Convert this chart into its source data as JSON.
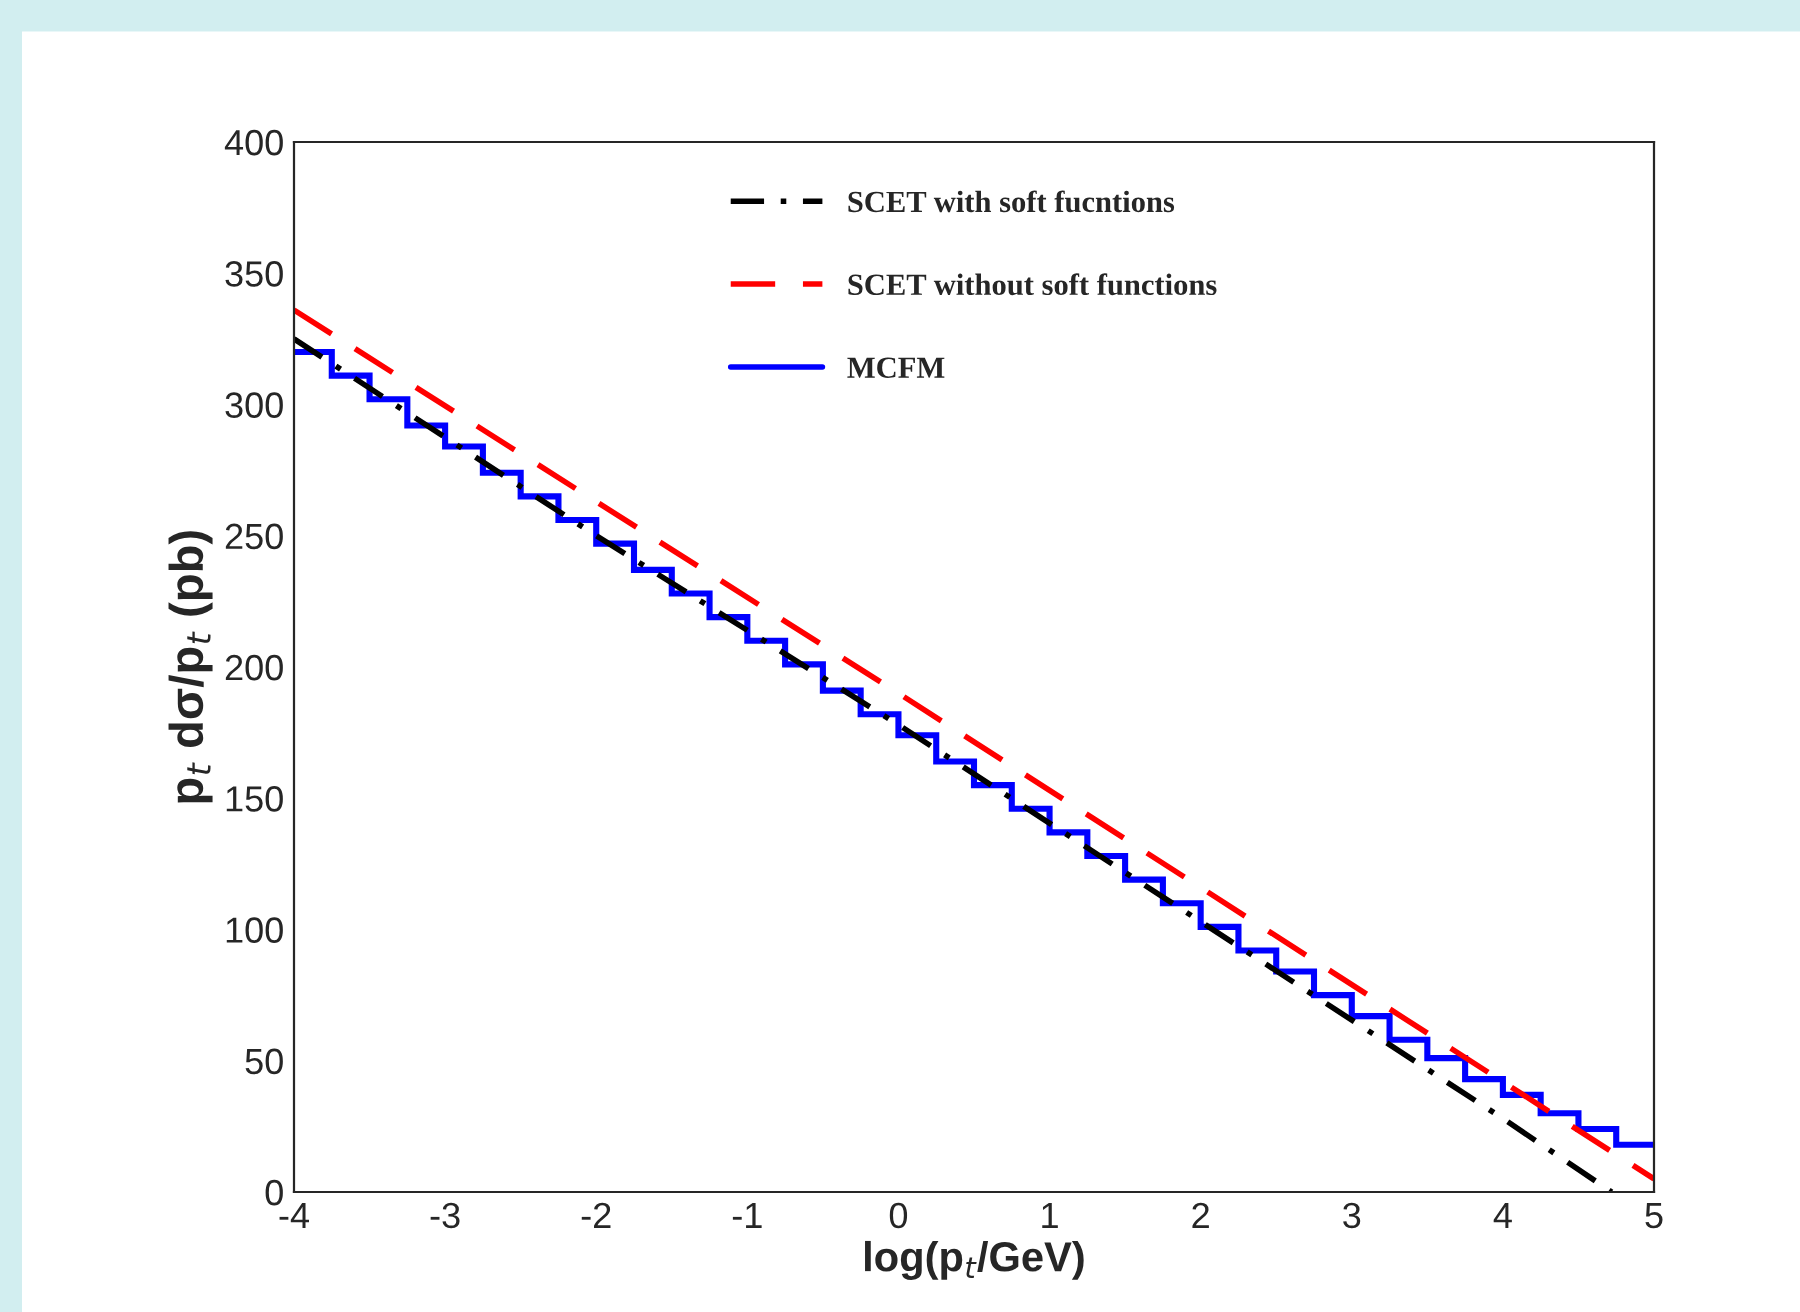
{
  "chart_data": {
    "type": "line",
    "xlabel": "log(p$_{t}$/GeV)",
    "ylabel": "p$_{t}$ dσ/p$_{t}$ (pb)",
    "xlim": [
      -4,
      5
    ],
    "xticks": [
      -4,
      -3,
      -2,
      -1,
      0,
      1,
      2,
      3,
      4,
      5
    ],
    "ylim": [
      0,
      400
    ],
    "yticks": [
      0,
      50,
      100,
      150,
      200,
      250,
      300,
      350,
      400
    ],
    "grid": false,
    "legend": "top",
    "series": [
      {
        "name": "SCET with soft fucntions",
        "line_style": "dashdot",
        "color": "#000000",
        "x": [
          -4,
          -2,
          0,
          2,
          4,
          4.72
        ],
        "values": [
          325,
          250,
          178,
          103,
          28,
          0
        ]
      },
      {
        "name": "SCET without soft functions",
        "line_style": "dashed",
        "color": "#ff0000",
        "x": [
          -4,
          0,
          5
        ],
        "values": [
          336,
          190,
          5
        ]
      },
      {
        "name": "MCFM",
        "type": "histogram",
        "line_style": "solid",
        "color": "#0000ff",
        "bins": [
          -4,
          -3.75,
          -3.5,
          -3.25,
          -3,
          -2.75,
          -2.5,
          -2.25,
          -2,
          -1.75,
          -1.5,
          -1.25,
          -1,
          -0.75,
          -0.5,
          -0.25,
          0,
          0.25,
          0.5,
          0.75,
          1,
          1.25,
          1.5,
          1.75,
          2,
          2.25,
          2.5,
          2.75,
          3,
          3.25,
          3.5,
          3.75,
          4,
          4.25,
          4.5,
          4.75,
          5
        ],
        "values": [
          320,
          311,
          302,
          292,
          284,
          274,
          265,
          256,
          247,
          237,
          228,
          219,
          210,
          201,
          191,
          182,
          174,
          164,
          155,
          146,
          137,
          128,
          119,
          110,
          101,
          92,
          84,
          75,
          67,
          58,
          51,
          43,
          37,
          30,
          24,
          18
        ]
      }
    ]
  }
}
